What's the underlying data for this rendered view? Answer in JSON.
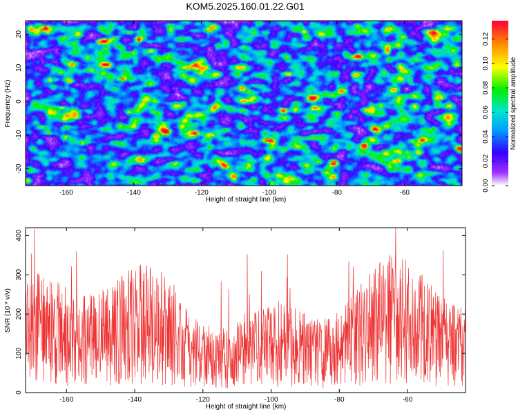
{
  "title": "KOM5.2025.160.01.22.G01",
  "chart_data": [
    {
      "type": "heatmap",
      "xlabel": "Height of straight line (km)",
      "ylabel": "Frequency (Hz)",
      "xlim": [
        -172,
        -43
      ],
      "ylim": [
        -25,
        24
      ],
      "xticks": [
        -160,
        -140,
        -120,
        -100,
        -80,
        -60
      ],
      "yticks": [
        -20,
        -10,
        0,
        10,
        20
      ],
      "colorbar": {
        "label": "Normalized spectral amplitude",
        "range": [
          0,
          0.135
        ],
        "ticks": [
          "0.00",
          "0.02",
          "0.04",
          "0.06",
          "0.08",
          "0.10",
          "0.12"
        ]
      },
      "description_of_values": "random field of spectral amplitudes, mostly 0.01-0.05 with sparse peaks up to ~0.13",
      "peaks": [
        {
          "x": -72,
          "y": -13,
          "value": 0.13
        },
        {
          "x": -81,
          "y": -18,
          "value": 0.12
        },
        {
          "x": -150,
          "y": 18,
          "value": 0.11
        },
        {
          "x": -167,
          "y": 22,
          "value": 0.09
        },
        {
          "x": -121,
          "y": 9,
          "value": 0.08
        },
        {
          "x": -56,
          "y": -15,
          "value": 0.09
        },
        {
          "x": -96,
          "y": -14,
          "value": 0.07
        },
        {
          "x": -144,
          "y": 7,
          "value": 0.07
        }
      ],
      "grid": false
    },
    {
      "type": "line",
      "xlabel": "Height of straight line (km)",
      "ylabel": "SNR (10 * v/v)",
      "xlim": [
        -172,
        -43
      ],
      "ylim": [
        0,
        420
      ],
      "xticks": [
        -160,
        -140,
        -120,
        -100,
        -80,
        -60
      ],
      "yticks": [
        0,
        100,
        200,
        300,
        400
      ],
      "series": [
        {
          "color": "#ee3333",
          "mean": 130,
          "typical_range": [
            30,
            260
          ],
          "max": 420
        }
      ],
      "grid": false
    }
  ]
}
